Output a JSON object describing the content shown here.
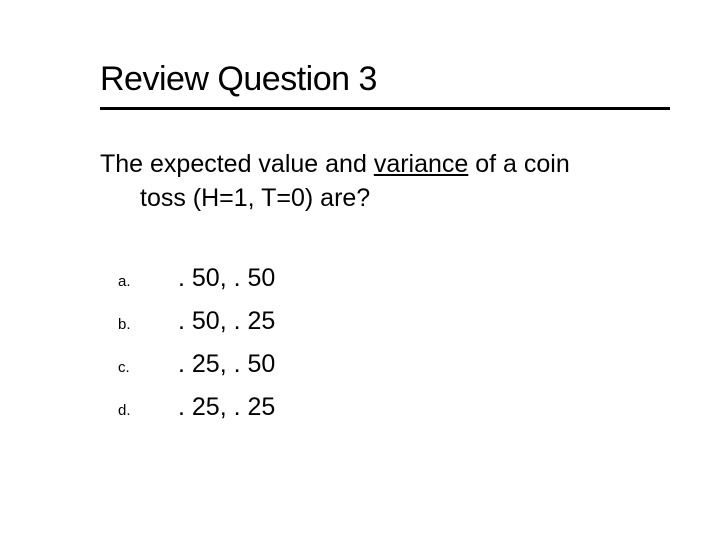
{
  "title": "Review Question 3",
  "question_line1": "The expected value and ",
  "question_variance": "variance",
  "question_line1_end": " of a coin",
  "question_line2": "toss (H=1, T=0) are?",
  "options": {
    "a": {
      "marker": "a.",
      "value": ". 50, . 50"
    },
    "b": {
      "marker": "b.",
      "value": ". 50, . 25"
    },
    "c": {
      "marker": "c.",
      "value": ". 25, . 50"
    },
    "d": {
      "marker": "d.",
      "value": ". 25, . 25"
    }
  },
  "colors": {
    "background": "#ffffff",
    "text": "#000000",
    "accent": "#c00000",
    "underline": "#000000"
  },
  "typography": {
    "title_fontsize": 34,
    "body_fontsize": 25,
    "marker_fontsize": 15,
    "font_family": "Verdana"
  }
}
